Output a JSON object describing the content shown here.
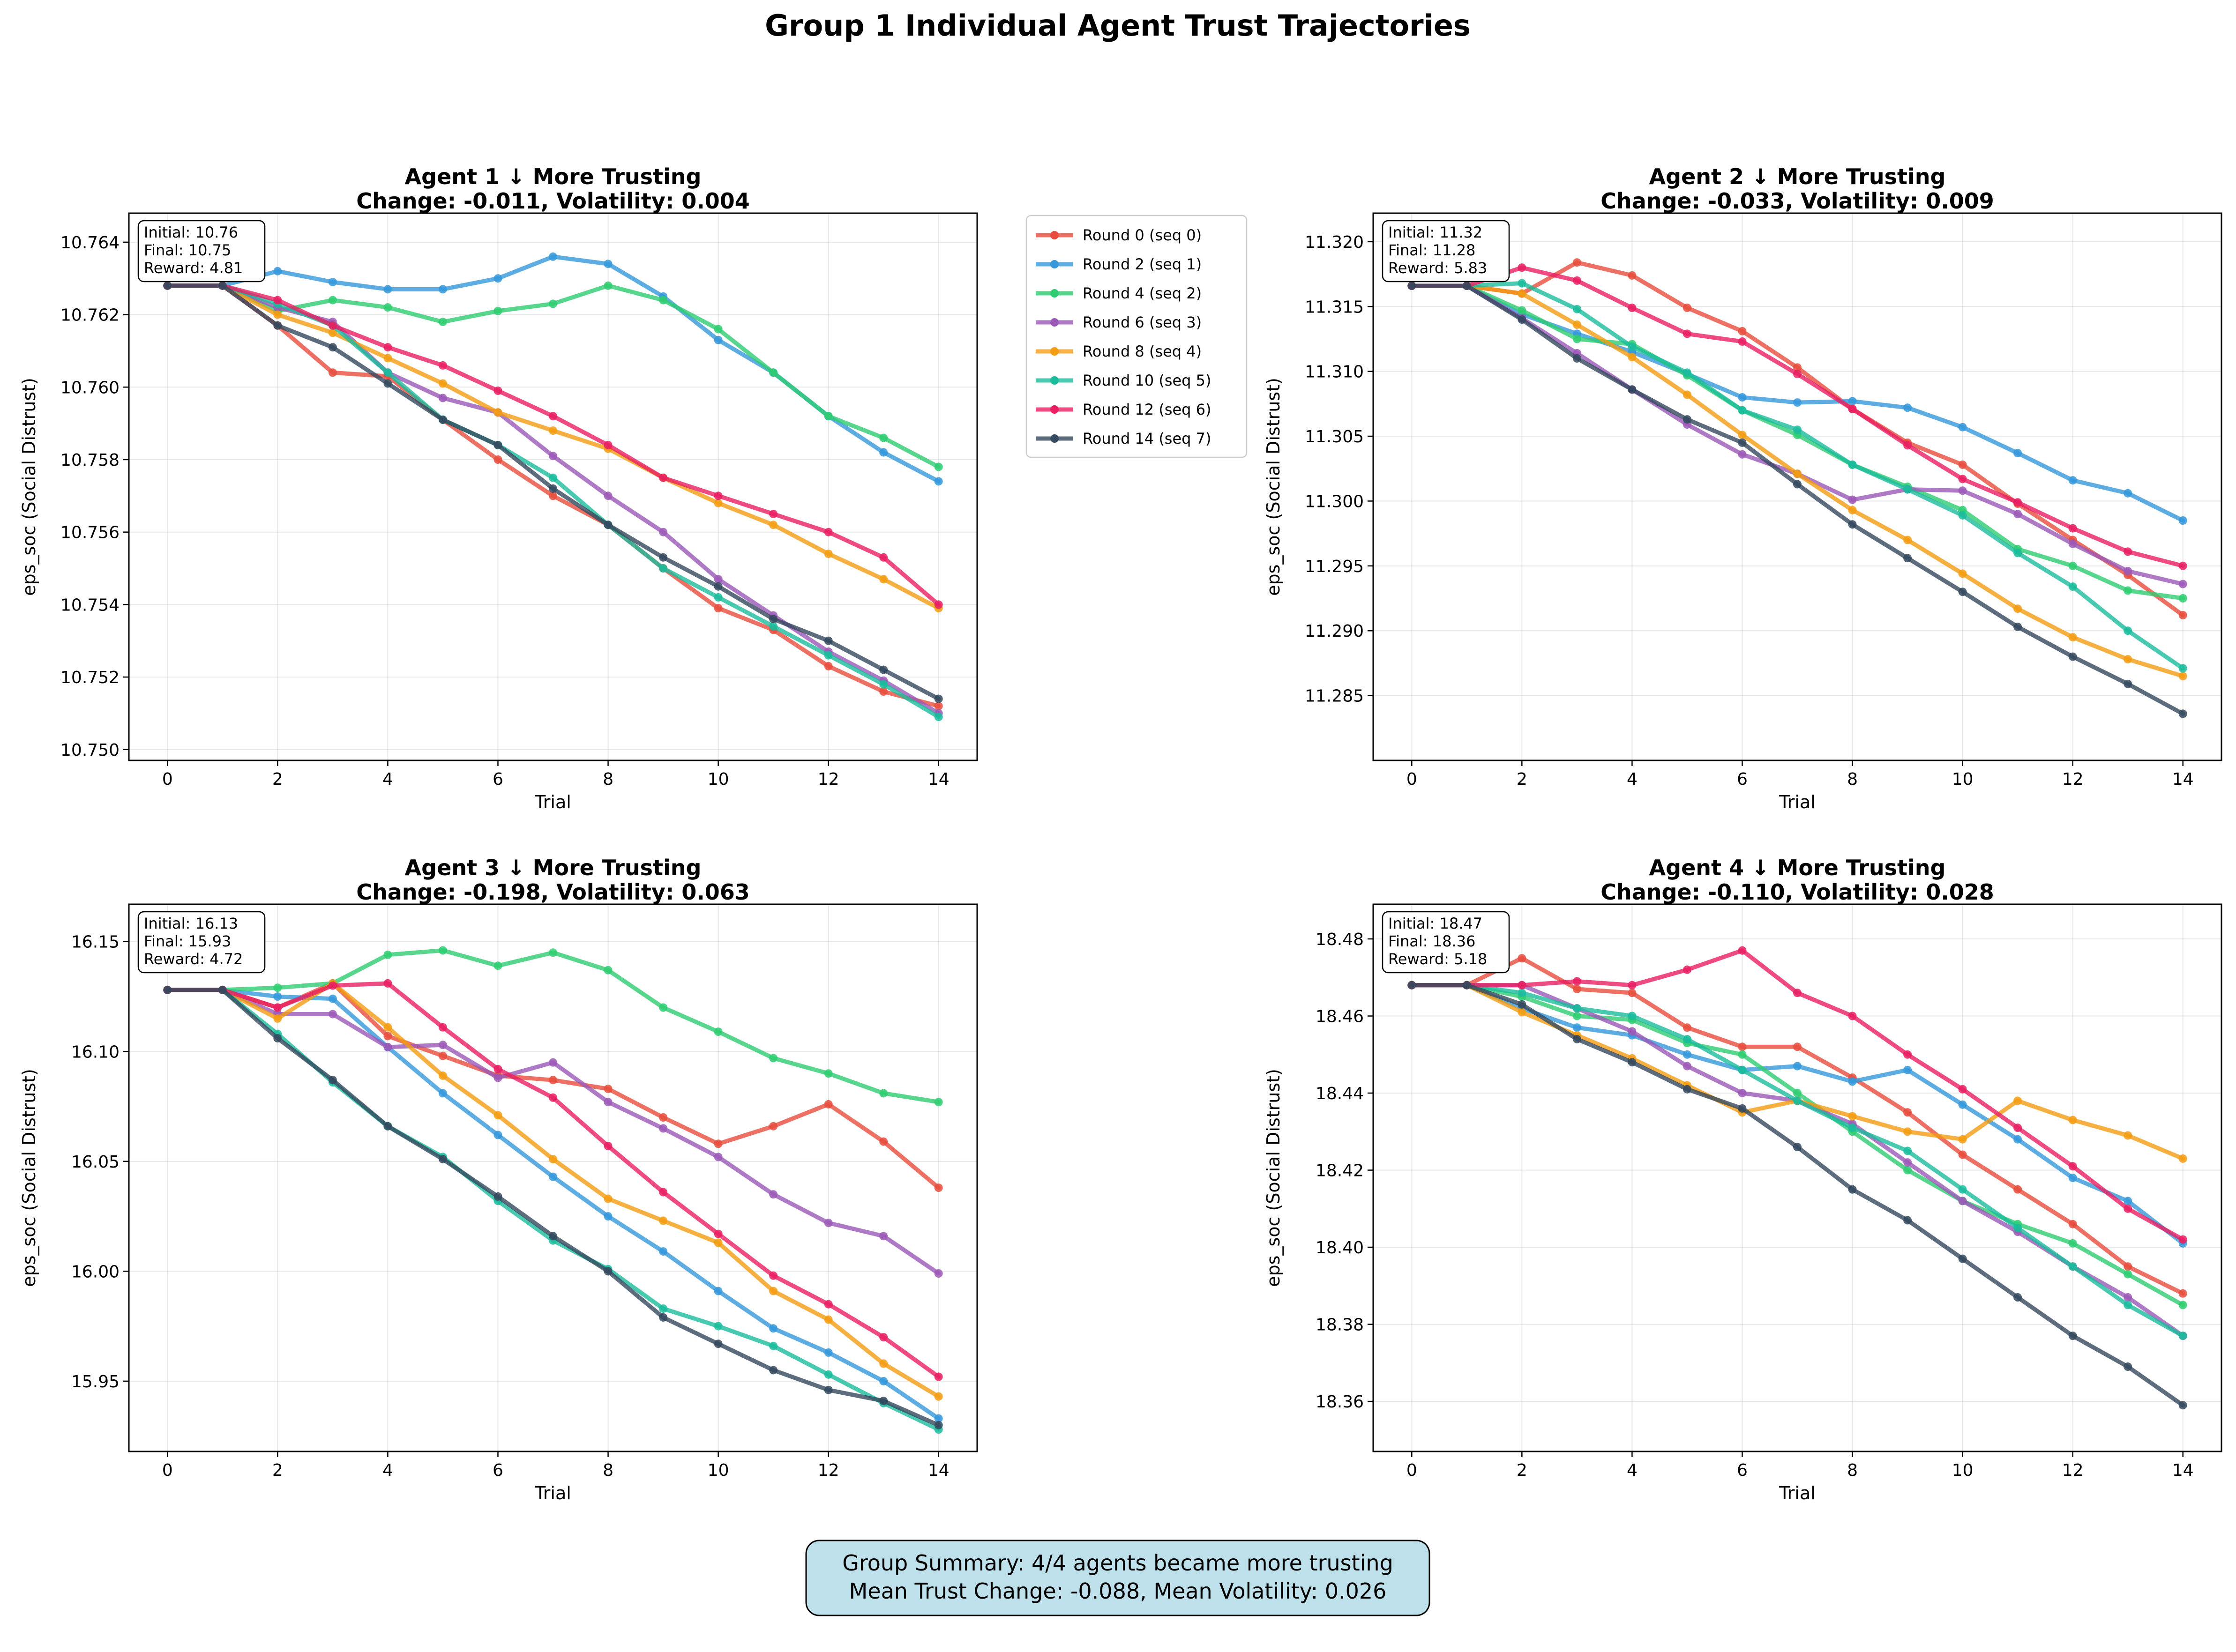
{
  "suptitle": "Group 1 Individual Agent Trust Trajectories",
  "summary": {
    "line1": "Group Summary: 4/4 agents became more trusting",
    "line2": "Mean Trust Change: -0.088, Mean Volatility: 0.026"
  },
  "legend": {
    "placement": "right of top-left panel",
    "entries": [
      {
        "label": "Round 0 (seq 0)",
        "color": "#e74c3c"
      },
      {
        "label": "Round 2 (seq 1)",
        "color": "#3498db"
      },
      {
        "label": "Round 4 (seq 2)",
        "color": "#2ecc71"
      },
      {
        "label": "Round 6 (seq 3)",
        "color": "#9b59b6"
      },
      {
        "label": "Round 8 (seq 4)",
        "color": "#f39c12"
      },
      {
        "label": "Round 10 (seq 5)",
        "color": "#1abc9c"
      },
      {
        "label": "Round 12 (seq 6)",
        "color": "#e91e63"
      },
      {
        "label": "Round 14 (seq 7)",
        "color": "#34495e"
      }
    ]
  },
  "chart_data": [
    {
      "type": "line",
      "title_line1": "Agent 1 ↓ More Trusting",
      "title_line2": "Change: -0.011, Volatility: 0.004",
      "xlabel": "Trial",
      "ylabel": "eps_soc (Social Distrust)",
      "xlim": [
        -0.7,
        14.7
      ],
      "ylim": [
        10.7497,
        10.7648
      ],
      "xticks": [
        0,
        2,
        4,
        6,
        8,
        10,
        12,
        14
      ],
      "yticks": [
        10.75,
        10.752,
        10.754,
        10.756,
        10.758,
        10.76,
        10.762,
        10.764
      ],
      "ytick_decimals": 3,
      "grid": true,
      "annotation": [
        "Initial: 10.76",
        "Final: 10.75",
        "Reward: 4.81"
      ],
      "x": [
        0,
        1,
        2,
        3,
        4,
        5,
        6,
        7,
        8,
        9,
        10,
        11,
        12,
        13,
        14
      ],
      "series": [
        {
          "name": "Round 0 (seq 0)",
          "values": [
            10.7628,
            10.7628,
            10.7617,
            10.7604,
            10.7603,
            10.7591,
            10.758,
            10.757,
            10.7562,
            10.755,
            10.7539,
            10.7533,
            10.7523,
            10.7516,
            10.7512
          ]
        },
        {
          "name": "Round 2 (seq 1)",
          "values": [
            10.7628,
            10.7628,
            10.7632,
            10.7629,
            10.7627,
            10.7627,
            10.763,
            10.7636,
            10.7634,
            10.7625,
            10.7613,
            10.7604,
            10.7592,
            10.7582,
            10.7574
          ]
        },
        {
          "name": "Round 4 (seq 2)",
          "values": [
            10.7628,
            10.7628,
            10.7621,
            10.7624,
            10.7622,
            10.7618,
            10.7621,
            10.7623,
            10.7628,
            10.7624,
            10.7616,
            10.7604,
            10.7592,
            10.7586,
            10.7578
          ]
        },
        {
          "name": "Round 6 (seq 3)",
          "values": [
            10.7628,
            10.7628,
            10.7622,
            10.7618,
            10.7604,
            10.7597,
            10.7593,
            10.7581,
            10.757,
            10.756,
            10.7547,
            10.7537,
            10.7527,
            10.7519,
            10.751
          ]
        },
        {
          "name": "Round 8 (seq 4)",
          "values": [
            10.7628,
            10.7628,
            10.762,
            10.7615,
            10.7608,
            10.7601,
            10.7593,
            10.7588,
            10.7583,
            10.7575,
            10.7568,
            10.7562,
            10.7554,
            10.7547,
            10.7539
          ]
        },
        {
          "name": "Round 10 (seq 5)",
          "values": [
            10.7628,
            10.7628,
            10.7623,
            10.7617,
            10.7604,
            10.7591,
            10.7584,
            10.7575,
            10.7562,
            10.755,
            10.7542,
            10.7534,
            10.7526,
            10.7518,
            10.7509
          ]
        },
        {
          "name": "Round 12 (seq 6)",
          "values": [
            10.7628,
            10.7628,
            10.7624,
            10.7617,
            10.7611,
            10.7606,
            10.7599,
            10.7592,
            10.7584,
            10.7575,
            10.757,
            10.7565,
            10.756,
            10.7553,
            10.754
          ]
        },
        {
          "name": "Round 14 (seq 7)",
          "values": [
            10.7628,
            10.7628,
            10.7617,
            10.7611,
            10.7601,
            10.7591,
            10.7584,
            10.7572,
            10.7562,
            10.7553,
            10.7545,
            10.7536,
            10.753,
            10.7522,
            10.7514
          ]
        }
      ]
    },
    {
      "type": "line",
      "title_line1": "Agent 2 ↓ More Trusting",
      "title_line2": "Change: -0.033, Volatility: 0.009",
      "xlabel": "Trial",
      "ylabel": "eps_soc (Social Distrust)",
      "xlim": [
        -0.7,
        14.7
      ],
      "ylim": [
        11.28,
        11.3222
      ],
      "xticks": [
        0,
        2,
        4,
        6,
        8,
        10,
        12,
        14
      ],
      "yticks": [
        11.285,
        11.29,
        11.295,
        11.3,
        11.305,
        11.31,
        11.315,
        11.32
      ],
      "ytick_decimals": 3,
      "grid": true,
      "annotation": [
        "Initial: 11.32",
        "Final: 11.28",
        "Reward: 5.83"
      ],
      "x": [
        0,
        1,
        2,
        3,
        4,
        5,
        6,
        7,
        8,
        9,
        10,
        11,
        12,
        13,
        14
      ],
      "series": [
        {
          "name": "Round 0 (seq 0)",
          "values": [
            11.3166,
            11.3166,
            11.316,
            11.3184,
            11.3174,
            11.3149,
            11.3131,
            11.3103,
            11.3071,
            11.3045,
            11.3028,
            11.2998,
            11.297,
            11.2943,
            11.2912
          ]
        },
        {
          "name": "Round 2 (seq 1)",
          "values": [
            11.3166,
            11.3166,
            11.3144,
            11.3129,
            11.3115,
            11.3098,
            11.308,
            11.3076,
            11.3077,
            11.3072,
            11.3057,
            11.3037,
            11.3016,
            11.3006,
            11.2985
          ]
        },
        {
          "name": "Round 4 (seq 2)",
          "values": [
            11.3166,
            11.3166,
            11.3147,
            11.3125,
            11.3121,
            11.3097,
            11.307,
            11.3051,
            11.3028,
            11.3011,
            11.2993,
            11.2963,
            11.295,
            11.2931,
            11.2925
          ]
        },
        {
          "name": "Round 6 (seq 3)",
          "values": [
            11.3166,
            11.3166,
            11.3141,
            11.3114,
            11.3086,
            11.3059,
            11.3036,
            11.3021,
            11.3001,
            11.3009,
            11.3008,
            11.299,
            11.2967,
            11.2946,
            11.2936
          ]
        },
        {
          "name": "Round 8 (seq 4)",
          "values": [
            11.3166,
            11.3166,
            11.316,
            11.3136,
            11.3111,
            11.3082,
            11.3051,
            11.3021,
            11.2993,
            11.297,
            11.2944,
            11.2917,
            11.2895,
            11.2878,
            11.2865
          ]
        },
        {
          "name": "Round 10 (seq 5)",
          "values": [
            11.3166,
            11.3166,
            11.3168,
            11.3148,
            11.3119,
            11.3099,
            11.307,
            11.3055,
            11.3028,
            11.3009,
            11.2989,
            11.296,
            11.2934,
            11.29,
            11.2871
          ]
        },
        {
          "name": "Round 12 (seq 6)",
          "values": [
            11.3166,
            11.3166,
            11.318,
            11.317,
            11.3149,
            11.3129,
            11.3123,
            11.3098,
            11.3071,
            11.3043,
            11.3017,
            11.2999,
            11.2979,
            11.2961,
            11.295
          ]
        },
        {
          "name": "Round 14 (seq 7)",
          "values": [
            11.3166,
            11.3166,
            11.314,
            11.311,
            11.3086,
            11.3063,
            11.3045,
            11.3013,
            11.2982,
            11.2956,
            11.293,
            11.2903,
            11.288,
            11.2859,
            11.2836
          ]
        }
      ]
    },
    {
      "type": "line",
      "title_line1": "Agent 3 ↓ More Trusting",
      "title_line2": "Change: -0.198, Volatility: 0.063",
      "xlabel": "Trial",
      "ylabel": "eps_soc (Social Distrust)",
      "xlim": [
        -0.7,
        14.7
      ],
      "ylim": [
        15.918,
        16.167
      ],
      "xticks": [
        0,
        2,
        4,
        6,
        8,
        10,
        12,
        14
      ],
      "yticks": [
        15.95,
        16.0,
        16.05,
        16.1,
        16.15
      ],
      "ytick_decimals": 2,
      "grid": true,
      "annotation": [
        "Initial: 16.13",
        "Final: 15.93",
        "Reward: 4.72"
      ],
      "x": [
        0,
        1,
        2,
        3,
        4,
        5,
        6,
        7,
        8,
        9,
        10,
        11,
        12,
        13,
        14
      ],
      "series": [
        {
          "name": "Round 0 (seq 0)",
          "values": [
            16.128,
            16.128,
            16.12,
            16.131,
            16.107,
            16.098,
            16.089,
            16.087,
            16.083,
            16.07,
            16.058,
            16.066,
            16.076,
            16.059,
            16.038
          ]
        },
        {
          "name": "Round 2 (seq 1)",
          "values": [
            16.128,
            16.128,
            16.125,
            16.124,
            16.102,
            16.081,
            16.062,
            16.043,
            16.025,
            16.009,
            15.991,
            15.974,
            15.963,
            15.95,
            15.933
          ]
        },
        {
          "name": "Round 4 (seq 2)",
          "values": [
            16.128,
            16.128,
            16.129,
            16.131,
            16.144,
            16.146,
            16.139,
            16.145,
            16.137,
            16.12,
            16.109,
            16.097,
            16.09,
            16.081,
            16.077
          ]
        },
        {
          "name": "Round 6 (seq 3)",
          "values": [
            16.128,
            16.128,
            16.117,
            16.117,
            16.102,
            16.103,
            16.088,
            16.095,
            16.077,
            16.065,
            16.052,
            16.035,
            16.022,
            16.016,
            15.999
          ]
        },
        {
          "name": "Round 8 (seq 4)",
          "values": [
            16.128,
            16.128,
            16.115,
            16.131,
            16.111,
            16.089,
            16.071,
            16.051,
            16.033,
            16.023,
            16.013,
            15.991,
            15.978,
            15.958,
            15.943
          ]
        },
        {
          "name": "Round 10 (seq 5)",
          "values": [
            16.128,
            16.128,
            16.108,
            16.086,
            16.066,
            16.052,
            16.032,
            16.014,
            16.001,
            15.983,
            15.975,
            15.966,
            15.953,
            15.94,
            15.928
          ]
        },
        {
          "name": "Round 12 (seq 6)",
          "values": [
            16.128,
            16.128,
            16.12,
            16.13,
            16.131,
            16.111,
            16.092,
            16.079,
            16.057,
            16.036,
            16.017,
            15.998,
            15.985,
            15.97,
            15.952
          ]
        },
        {
          "name": "Round 14 (seq 7)",
          "values": [
            16.128,
            16.128,
            16.106,
            16.087,
            16.066,
            16.051,
            16.034,
            16.016,
            16.0,
            15.979,
            15.967,
            15.955,
            15.946,
            15.941,
            15.93
          ]
        }
      ]
    },
    {
      "type": "line",
      "title_line1": "Agent 4 ↓ More Trusting",
      "title_line2": "Change: -0.110, Volatility: 0.028",
      "xlabel": "Trial",
      "ylabel": "eps_soc (Social Distrust)",
      "xlim": [
        -0.7,
        14.7
      ],
      "ylim": [
        18.347,
        18.489
      ],
      "xticks": [
        0,
        2,
        4,
        6,
        8,
        10,
        12,
        14
      ],
      "yticks": [
        18.36,
        18.38,
        18.4,
        18.42,
        18.44,
        18.46,
        18.48
      ],
      "ytick_decimals": 2,
      "grid": true,
      "annotation": [
        "Initial: 18.47",
        "Final: 18.36",
        "Reward: 5.18"
      ],
      "x": [
        0,
        1,
        2,
        3,
        4,
        5,
        6,
        7,
        8,
        9,
        10,
        11,
        12,
        13,
        14
      ],
      "series": [
        {
          "name": "Round 0 (seq 0)",
          "values": [
            18.468,
            18.468,
            18.475,
            18.467,
            18.466,
            18.457,
            18.452,
            18.452,
            18.444,
            18.435,
            18.424,
            18.415,
            18.406,
            18.395,
            18.388
          ]
        },
        {
          "name": "Round 2 (seq 1)",
          "values": [
            18.468,
            18.468,
            18.462,
            18.457,
            18.455,
            18.45,
            18.446,
            18.447,
            18.443,
            18.446,
            18.437,
            18.428,
            18.418,
            18.412,
            18.401
          ]
        },
        {
          "name": "Round 4 (seq 2)",
          "values": [
            18.468,
            18.468,
            18.465,
            18.46,
            18.459,
            18.453,
            18.45,
            18.44,
            18.43,
            18.42,
            18.412,
            18.406,
            18.401,
            18.393,
            18.385
          ]
        },
        {
          "name": "Round 6 (seq 3)",
          "values": [
            18.468,
            18.468,
            18.468,
            18.462,
            18.456,
            18.447,
            18.44,
            18.438,
            18.432,
            18.422,
            18.412,
            18.404,
            18.395,
            18.387,
            18.377
          ]
        },
        {
          "name": "Round 8 (seq 4)",
          "values": [
            18.468,
            18.468,
            18.461,
            18.455,
            18.449,
            18.442,
            18.435,
            18.438,
            18.434,
            18.43,
            18.428,
            18.438,
            18.433,
            18.429,
            18.423
          ]
        },
        {
          "name": "Round 10 (seq 5)",
          "values": [
            18.468,
            18.468,
            18.466,
            18.462,
            18.46,
            18.454,
            18.446,
            18.438,
            18.431,
            18.425,
            18.415,
            18.405,
            18.395,
            18.385,
            18.377
          ]
        },
        {
          "name": "Round 12 (seq 6)",
          "values": [
            18.468,
            18.468,
            18.468,
            18.469,
            18.468,
            18.472,
            18.477,
            18.466,
            18.46,
            18.45,
            18.441,
            18.431,
            18.421,
            18.41,
            18.402
          ]
        },
        {
          "name": "Round 14 (seq 7)",
          "values": [
            18.468,
            18.468,
            18.463,
            18.454,
            18.448,
            18.441,
            18.436,
            18.426,
            18.415,
            18.407,
            18.397,
            18.387,
            18.377,
            18.369,
            18.359
          ]
        }
      ]
    }
  ]
}
